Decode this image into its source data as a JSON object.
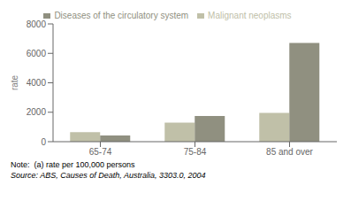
{
  "chart_data": {
    "type": "bar",
    "categories": [
      "65-74",
      "75-84",
      "85 and over"
    ],
    "series": [
      {
        "name": "Malignant neoplasms",
        "color": "#c0c0a8",
        "values": [
          650,
          1300,
          1950
        ]
      },
      {
        "name": "Diseases of the circulatory system",
        "color": "#909080",
        "values": [
          420,
          1750,
          6700
        ]
      }
    ],
    "ylabel": "rate",
    "ylim": [
      0,
      8000
    ],
    "yticks": [
      0,
      2000,
      4000,
      6000,
      8000
    ],
    "grid": false,
    "legend": "top",
    "annotations": [
      "Note:  (a) rate per 100,000 persons",
      "Source: ABS, Causes of Death, Australia, 3303.0, 2004"
    ]
  }
}
